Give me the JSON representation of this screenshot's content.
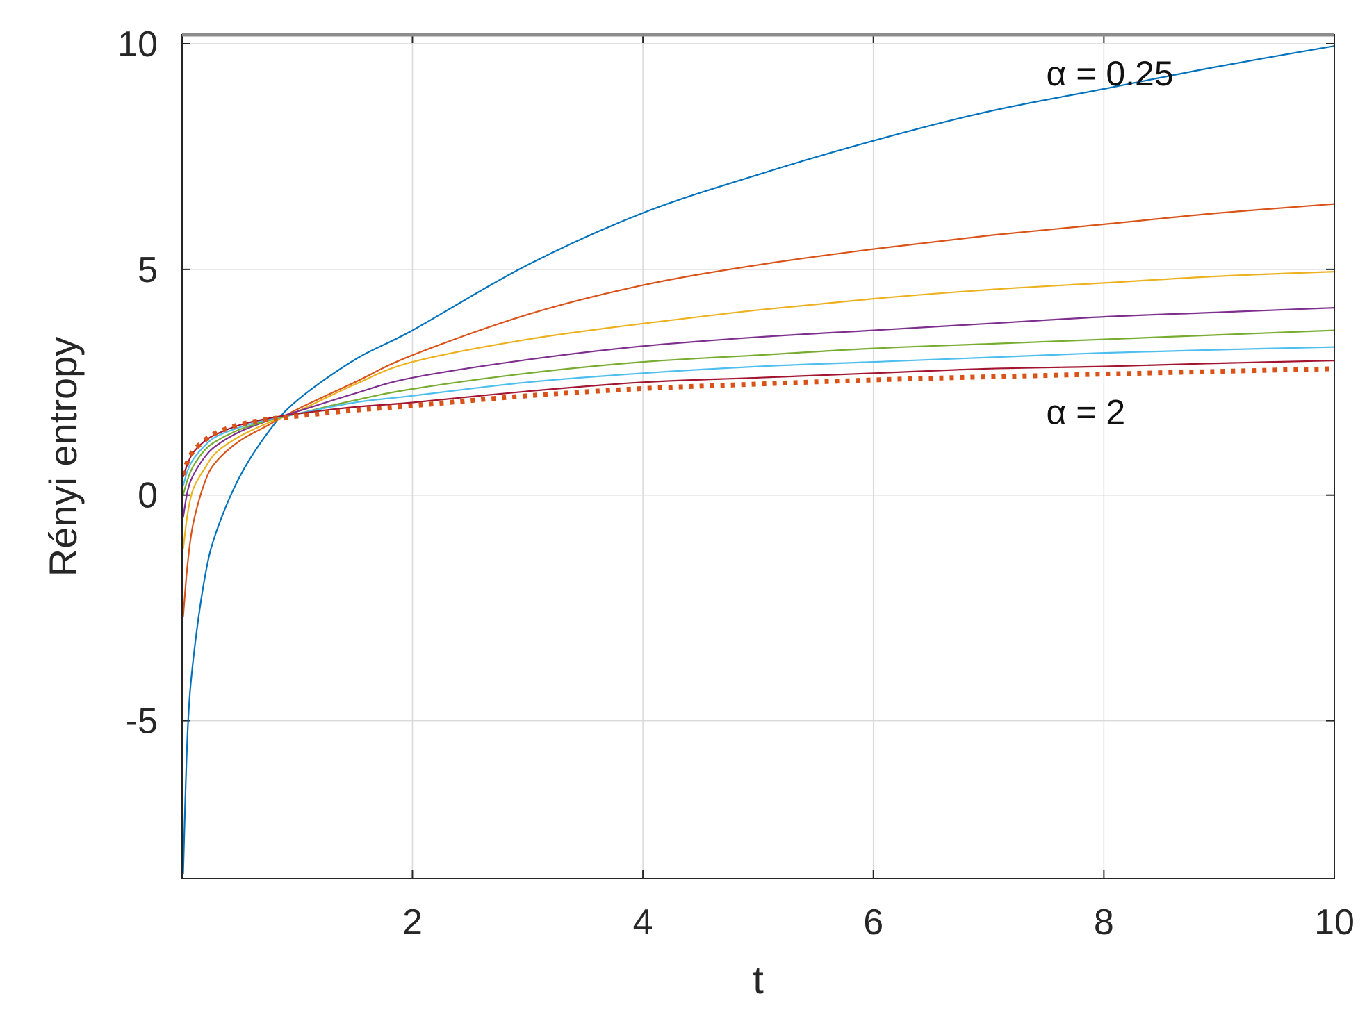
{
  "chart_data": {
    "type": "line",
    "title": "",
    "xlabel": "t",
    "ylabel": "Rényi entropy",
    "xlim": [
      0.001,
      10
    ],
    "ylim": [
      -8.5,
      10.2
    ],
    "x_ticks": [
      2,
      4,
      6,
      8,
      10
    ],
    "x_tick_labels": [
      "2",
      "4",
      "6",
      "8",
      "10"
    ],
    "y_ticks": [
      -5,
      0,
      5,
      10
    ],
    "y_tick_labels": [
      "-5",
      "0",
      "5",
      "10"
    ],
    "grid": true,
    "legend": "none",
    "series": [
      {
        "color": "#0072BD",
        "style": "solid",
        "x": [
          0.01,
          0.05,
          0.1,
          0.2,
          0.3,
          0.5,
          0.75,
          1.0,
          1.5,
          2.0,
          3.0,
          4.0,
          5.0,
          6.0,
          7.0,
          8.0,
          9.0,
          10.0
        ],
        "y": [
          -8.4,
          -5.2,
          -3.6,
          -1.8,
          -0.8,
          0.4,
          1.4,
          2.1,
          3.0,
          3.65,
          5.1,
          6.25,
          7.1,
          7.85,
          8.5,
          9.0,
          9.5,
          9.95
        ]
      },
      {
        "color": "#D95319",
        "style": "solid",
        "x": [
          0.01,
          0.05,
          0.1,
          0.2,
          0.3,
          0.5,
          0.75,
          1.0,
          1.5,
          2.0,
          3.0,
          4.0,
          5.0,
          6.0,
          7.0,
          8.0,
          9.0,
          10.0
        ],
        "y": [
          -2.7,
          -1.5,
          -0.6,
          0.3,
          0.75,
          1.2,
          1.55,
          1.9,
          2.5,
          3.1,
          4.0,
          4.65,
          5.1,
          5.45,
          5.75,
          6.0,
          6.25,
          6.45
        ]
      },
      {
        "color": "#EDB120",
        "style": "solid",
        "x": [
          0.01,
          0.05,
          0.1,
          0.2,
          0.3,
          0.5,
          0.75,
          1.0,
          1.5,
          2.0,
          3.0,
          4.0,
          5.0,
          6.0,
          7.0,
          8.0,
          9.0,
          10.0
        ],
        "y": [
          -1.2,
          -0.4,
          0.15,
          0.6,
          0.95,
          1.3,
          1.6,
          1.85,
          2.45,
          2.95,
          3.45,
          3.8,
          4.1,
          4.35,
          4.55,
          4.7,
          4.85,
          4.95
        ]
      },
      {
        "color": "#7E2F8E",
        "style": "solid",
        "x": [
          0.01,
          0.05,
          0.1,
          0.2,
          0.3,
          0.5,
          0.75,
          1.0,
          1.5,
          2.0,
          3.0,
          4.0,
          5.0,
          6.0,
          7.0,
          8.0,
          9.0,
          10.0
        ],
        "y": [
          -0.5,
          0.1,
          0.45,
          0.85,
          1.1,
          1.4,
          1.65,
          1.85,
          2.25,
          2.6,
          3.0,
          3.3,
          3.5,
          3.65,
          3.8,
          3.95,
          4.05,
          4.15
        ]
      },
      {
        "color": "#77AC30",
        "style": "solid",
        "x": [
          0.01,
          0.05,
          0.1,
          0.2,
          0.3,
          0.5,
          0.75,
          1.0,
          1.5,
          2.0,
          3.0,
          4.0,
          5.0,
          6.0,
          7.0,
          8.0,
          9.0,
          10.0
        ],
        "y": [
          0.0,
          0.35,
          0.65,
          1.0,
          1.2,
          1.45,
          1.65,
          1.8,
          2.1,
          2.35,
          2.7,
          2.95,
          3.1,
          3.25,
          3.35,
          3.45,
          3.55,
          3.65
        ]
      },
      {
        "color": "#4DBEEE",
        "style": "solid",
        "x": [
          0.01,
          0.05,
          0.1,
          0.2,
          0.3,
          0.5,
          0.75,
          1.0,
          1.5,
          2.0,
          3.0,
          4.0,
          5.0,
          6.0,
          7.0,
          8.0,
          9.0,
          10.0
        ],
        "y": [
          0.2,
          0.55,
          0.8,
          1.1,
          1.3,
          1.5,
          1.68,
          1.8,
          2.05,
          2.2,
          2.5,
          2.7,
          2.85,
          2.95,
          3.05,
          3.15,
          3.22,
          3.28
        ]
      },
      {
        "color": "#A2142F",
        "style": "solid",
        "x": [
          0.01,
          0.05,
          0.1,
          0.2,
          0.3,
          0.5,
          0.75,
          1.0,
          1.5,
          2.0,
          3.0,
          4.0,
          5.0,
          6.0,
          7.0,
          8.0,
          9.0,
          10.0
        ],
        "y": [
          0.4,
          0.7,
          0.95,
          1.2,
          1.35,
          1.55,
          1.7,
          1.8,
          1.95,
          2.05,
          2.3,
          2.5,
          2.6,
          2.7,
          2.8,
          2.85,
          2.92,
          2.98
        ]
      },
      {
        "color": "#D95319",
        "style": "dotted",
        "x": [
          0.01,
          0.05,
          0.1,
          0.2,
          0.3,
          0.5,
          0.75,
          1.0,
          1.5,
          2.0,
          3.0,
          4.0,
          5.0,
          6.0,
          7.0,
          8.0,
          9.0,
          10.0
        ],
        "y": [
          0.45,
          0.75,
          0.98,
          1.22,
          1.38,
          1.56,
          1.68,
          1.75,
          1.88,
          1.98,
          2.2,
          2.36,
          2.46,
          2.55,
          2.62,
          2.68,
          2.74,
          2.8
        ]
      }
    ],
    "annotations": [
      {
        "text": "α = 0.25",
        "x": 7.5,
        "y": 9.35
      },
      {
        "text": "α = 2",
        "x": 7.5,
        "y": 1.85
      }
    ]
  }
}
